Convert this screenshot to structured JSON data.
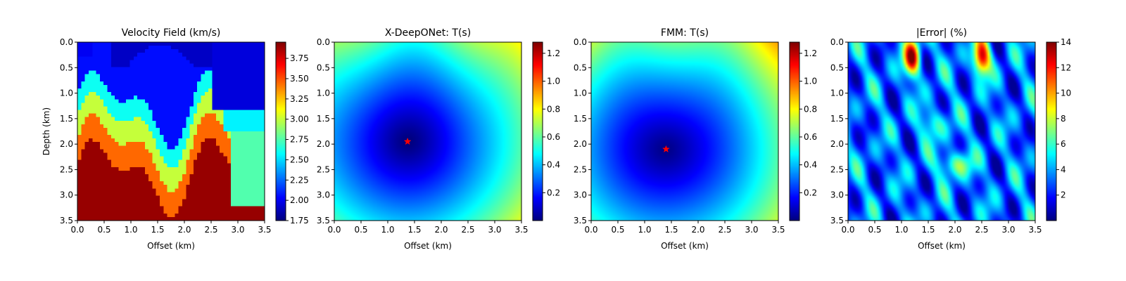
{
  "chart_data": [
    {
      "type": "heatmap",
      "title": "Velocity Field (km/s)",
      "xlabel": "Offset (km)",
      "ylabel": "Depth (km)",
      "xlim": [
        0,
        3.5
      ],
      "ylim": [
        3.5,
        0
      ],
      "xticks": [
        "0.0",
        "0.5",
        "1.0",
        "1.5",
        "2.0",
        "2.5",
        "3.0",
        "3.5"
      ],
      "yticks": [
        "0.0",
        "0.5",
        "1.0",
        "1.5",
        "2.0",
        "2.5",
        "3.0",
        "3.5"
      ],
      "colormap": "jet",
      "colorbar": {
        "min": 1.75,
        "max": 3.95,
        "ticks": [
          "1.75",
          "2.00",
          "2.25",
          "2.50",
          "2.75",
          "3.00",
          "3.25",
          "3.50",
          "3.75"
        ]
      },
      "field": "velocity"
    },
    {
      "type": "heatmap",
      "title": "X-DeepONet: T(s)",
      "xlabel": "Offset (km)",
      "ylabel": "",
      "xlim": [
        0,
        3.5
      ],
      "ylim": [
        3.5,
        0
      ],
      "xticks": [
        "0.0",
        "0.5",
        "1.0",
        "1.5",
        "2.0",
        "2.5",
        "3.0",
        "3.5"
      ],
      "yticks": [
        "0.0",
        "0.5",
        "1.0",
        "1.5",
        "2.0",
        "2.5",
        "3.0",
        "3.5"
      ],
      "colormap": "jet",
      "colorbar": {
        "min": 0.0,
        "max": 1.28,
        "ticks": [
          "0.2",
          "0.4",
          "0.6",
          "0.8",
          "1.0",
          "1.2"
        ]
      },
      "field": "traveltime",
      "source": {
        "x": 1.37,
        "y": 1.95,
        "color": "#ff0000",
        "marker": "star"
      }
    },
    {
      "type": "heatmap",
      "title": "FMM: T(s)",
      "xlabel": "Offset (km)",
      "ylabel": "",
      "xlim": [
        0,
        3.5
      ],
      "ylim": [
        3.5,
        0
      ],
      "xticks": [
        "0.0",
        "0.5",
        "1.0",
        "1.5",
        "2.0",
        "2.5",
        "3.0",
        "3.5"
      ],
      "yticks": [
        "0.0",
        "0.5",
        "1.0",
        "1.5",
        "2.0",
        "2.5",
        "3.0",
        "3.5"
      ],
      "colormap": "jet",
      "colorbar": {
        "min": 0.0,
        "max": 1.28,
        "ticks": [
          "0.2",
          "0.4",
          "0.6",
          "0.8",
          "1.0",
          "1.2"
        ]
      },
      "field": "traveltime",
      "source": {
        "x": 1.4,
        "y": 2.1,
        "color": "#ff0000",
        "marker": "star"
      }
    },
    {
      "type": "heatmap",
      "title": "|Error| (%)",
      "xlabel": "Offset (km)",
      "ylabel": "",
      "xlim": [
        0,
        3.5
      ],
      "ylim": [
        3.5,
        0
      ],
      "xticks": [
        "0.0",
        "0.5",
        "1.0",
        "1.5",
        "2.0",
        "2.5",
        "3.0",
        "3.5"
      ],
      "yticks": [
        "0.0",
        "0.5",
        "1.0",
        "1.5",
        "2.0",
        "2.5",
        "3.0",
        "3.5"
      ],
      "colormap": "jet",
      "colorbar": {
        "min": 0.0,
        "max": 14.0,
        "ticks": [
          "2",
          "4",
          "6",
          "8",
          "10",
          "12",
          "14"
        ]
      },
      "field": "error"
    }
  ]
}
